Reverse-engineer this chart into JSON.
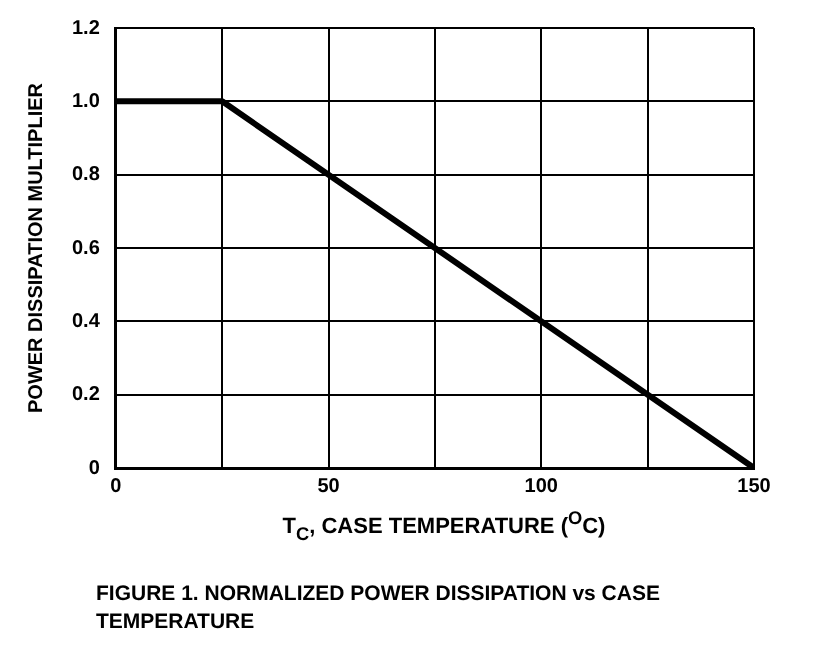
{
  "chart_data": {
    "type": "line",
    "title": "FIGURE 1.  NORMALIZED POWER DISSIPATION vs CASE TEMPERATURE",
    "xlabel": "T$_{C}$, CASE TEMPERATURE ($^{O}$C)",
    "ylabel": "POWER DISSIPATION MULTIPLIER",
    "series": [
      {
        "color": "#000000",
        "x": [
          0,
          25,
          150
        ],
        "values": [
          1.0,
          1.0,
          0
        ]
      }
    ],
    "xlim": [
      0,
      150
    ],
    "xticks": [
      0,
      {
        "value": 25,
        "label": null
      },
      50,
      {
        "value": 75,
        "label": null
      },
      100,
      {
        "value": 125,
        "label": null
      },
      150
    ],
    "ylim": [
      0,
      1.2
    ],
    "yticks": [
      0,
      0.2,
      0.4,
      0.6,
      0.8,
      {
        "value": 1,
        "label": "1.0"
      },
      1.2
    ],
    "grid": true,
    "legend": false,
    "marker": "none",
    "line_style": "solid"
  }
}
